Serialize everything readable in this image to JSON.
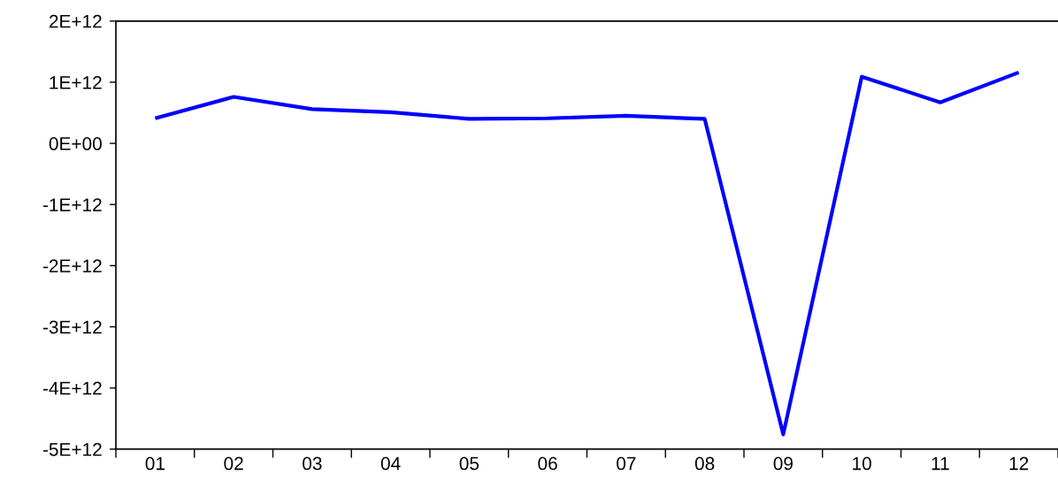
{
  "chart_data": {
    "type": "line",
    "categories": [
      "01",
      "02",
      "03",
      "04",
      "05",
      "06",
      "07",
      "08",
      "09",
      "10",
      "11",
      "12"
    ],
    "series": [
      {
        "color": "#0000ff",
        "values": [
          410000000000.0,
          760000000000.0,
          560000000000.0,
          510000000000.0,
          400000000000.0,
          410000000000.0,
          450000000000.0,
          400000000000.0,
          -4760000000000.0,
          1090000000000.0,
          670000000000.0,
          1160000000000.0
        ]
      }
    ],
    "ylim": [
      -5000000000000.0,
      2000000000000.0
    ],
    "yticks": [
      {
        "value": 2000000000000.0,
        "label": "2E+12"
      },
      {
        "value": 1000000000000.0,
        "label": "1E+12"
      },
      {
        "value": 0,
        "label": "0E+00"
      },
      {
        "value": -1000000000000.0,
        "label": "-1E+12"
      },
      {
        "value": -2000000000000.0,
        "label": "-2E+12"
      },
      {
        "value": -3000000000000.0,
        "label": "-3E+12"
      },
      {
        "value": -4000000000000.0,
        "label": "-4E+12"
      },
      {
        "value": -5000000000000.0,
        "label": "-5E+12"
      }
    ],
    "line_style": "solid"
  }
}
